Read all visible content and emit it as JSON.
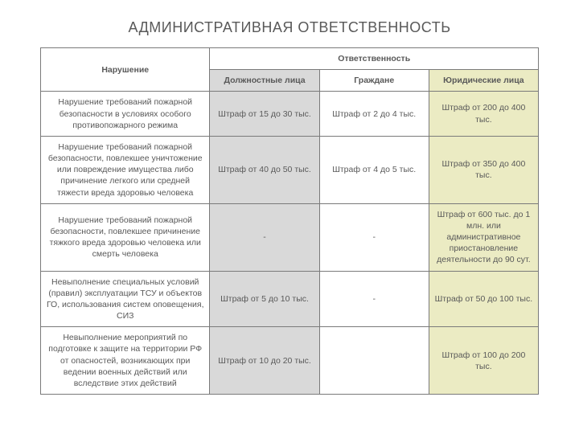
{
  "title": "АДМИНИСТРАТИВНАЯ ОТВЕТСТВЕННОСТЬ",
  "table": {
    "header_violation": "Нарушение",
    "header_responsibility": "Ответственность",
    "subheaders": {
      "officials": "Должностные лица",
      "citizens": "Граждане",
      "legal": "Юридические лица"
    },
    "column_widths_pct": [
      34,
      22,
      22,
      22
    ],
    "header_bg": "#ffffff",
    "sub_bg": {
      "officials": "#d9d9d9",
      "citizens": "#ffffff",
      "legal": "#ebebc3"
    },
    "cell_bg": {
      "violation": "#ffffff",
      "officials": "#d9d9d9",
      "citizens": "#ffffff",
      "legal": "#ebebc3"
    },
    "border_color": "#7a7a7a",
    "text_color": "#595959",
    "font_size_pt": 8,
    "rows": [
      {
        "violation": "Нарушение требований пожарной безопасности в условиях особого противопожарного режима",
        "officials": "Штраф от 15 до 30 тыс.",
        "citizens": "Штраф от 2 до 4 тыс.",
        "legal": "Штраф от 200 до 400 тыс."
      },
      {
        "violation": "Нарушение требований пожарной безопасности, повлекшее уничтожение или повреждение имущества либо причинение легкого или средней тяжести вреда здоровью человека",
        "officials": "Штраф от 40 до 50 тыс.",
        "citizens": "Штраф от 4 до 5 тыс.",
        "legal": "Штраф от 350 до 400 тыс."
      },
      {
        "violation": "Нарушение требований пожарной безопасности, повлекшее причинение тяжкого вреда здоровью человека или смерть человека",
        "officials": "-",
        "citizens": "-",
        "legal": "Штраф от 600 тыс. до 1 млн. или административное приостановление деятельности до 90 сут."
      },
      {
        "violation": "Невыполнение специальных условий (правил) эксплуатации ТСУ и объектов ГО, использования систем оповещения, СИЗ",
        "officials": "Штраф от 5 до 10 тыс.",
        "citizens": "-",
        "legal": "Штраф от 50 до 100 тыс."
      },
      {
        "violation": "Невыполнение мероприятий по подготовке к защите на территории РФ от опасностей, возникающих при ведении военных действий или вследствие этих действий",
        "officials": "Штраф от 10 до 20 тыс.",
        "citizens": "",
        "legal": "Штраф от 100 до 200 тыс."
      }
    ]
  }
}
